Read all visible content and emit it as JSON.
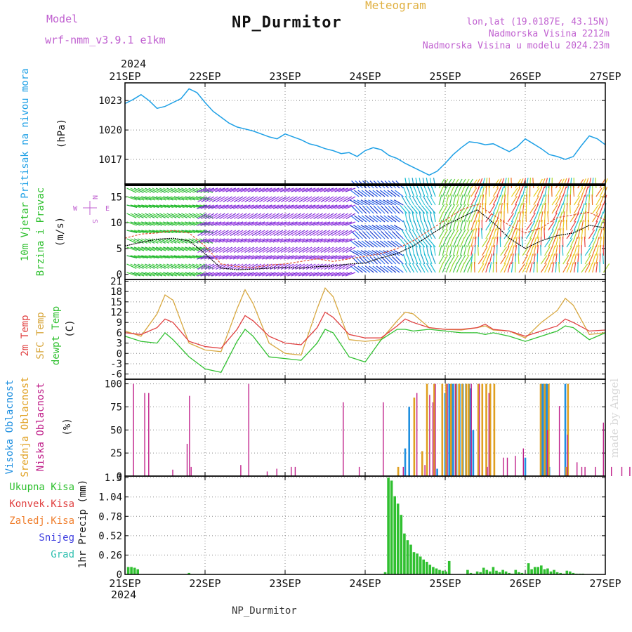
{
  "header": {
    "title": "NP_Durmitor",
    "meteogram_label": "Meteogram",
    "model_label": "Model",
    "model_name": "wrf-nmm_v3.9.1 e1km",
    "lonlat": "lon,lat (19.0187E, 43.15N)",
    "altitude": "Nadmorska Visina 2212m",
    "altitude_model": "Nadmorska Visina u modelu 2024.23m",
    "year": "2024",
    "bottom_label": "NP_Durmitor",
    "watermark": "made by Angel"
  },
  "colors": {
    "pressure": "#1ea0e6",
    "wind_speed": "#000000",
    "gust": "#e05030",
    "temp_2m": "#e04040",
    "temp_sfc": "#d8a840",
    "dewpoint": "#30c030",
    "cloud_high": "#2090e0",
    "cloud_mid": "#e0a020",
    "cloud_low": "#c0208a",
    "precip_total": "#30c030",
    "precip_conv": "#e04040",
    "precip_frozen": "#f08030",
    "snow": "#4040e0",
    "hail": "#30c0b0",
    "compass": "#c060d0"
  },
  "chart_data": [
    {
      "type": "line",
      "panel": "pressure",
      "ylabel_left": "Pritisak na nivou mora",
      "ylabel_unit": "(hPa)",
      "x_tick_labels": [
        "21SEP",
        "22SEP",
        "23SEP",
        "24SEP",
        "25SEP",
        "26SEP",
        "27SEP"
      ],
      "yticks": [
        1017,
        1020,
        1023
      ],
      "ylim": [
        1014.5,
        1024.8
      ],
      "grid": true,
      "x": [
        0,
        0.1,
        0.2,
        0.3,
        0.4,
        0.5,
        0.6,
        0.7,
        0.8,
        0.9,
        1.0,
        1.1,
        1.2,
        1.3,
        1.4,
        1.5,
        1.6,
        1.7,
        1.8,
        1.9,
        2.0,
        2.1,
        2.2,
        2.3,
        2.4,
        2.5,
        2.6,
        2.7,
        2.8,
        2.9,
        3.0,
        3.1,
        3.2,
        3.3,
        3.4,
        3.5,
        3.6,
        3.7,
        3.8,
        3.9,
        4.0,
        4.1,
        4.2,
        4.3,
        4.4,
        4.5,
        4.6,
        4.7,
        4.8,
        4.9,
        5.0,
        5.1,
        5.2,
        5.3,
        5.4,
        5.5,
        5.6,
        5.7,
        5.8,
        5.9,
        6.0
      ],
      "series": [
        {
          "values": [
            1022.7,
            1023.1,
            1023.6,
            1023.0,
            1022.2,
            1022.4,
            1022.8,
            1023.2,
            1024.2,
            1023.8,
            1022.8,
            1021.9,
            1021.3,
            1020.7,
            1020.3,
            1020.1,
            1019.9,
            1019.6,
            1019.3,
            1019.1,
            1019.6,
            1019.3,
            1019.0,
            1018.6,
            1018.4,
            1018.1,
            1017.9,
            1017.6,
            1017.7,
            1017.3,
            1017.9,
            1018.2,
            1018.0,
            1017.4,
            1017.1,
            1016.6,
            1016.2,
            1015.8,
            1015.4,
            1015.8,
            1016.6,
            1017.5,
            1018.2,
            1018.8,
            1018.7,
            1018.5,
            1018.6,
            1018.2,
            1017.8,
            1018.3,
            1019.1,
            1018.6,
            1018.1,
            1017.5,
            1017.3,
            1017.0,
            1017.3,
            1018.4,
            1019.4,
            1019.1,
            1018.5
          ]
        }
      ]
    },
    {
      "type": "line",
      "panel": "wind",
      "ylabel_left": "10m Vjetar",
      "ylabel_left2": "Brzina i Pravac",
      "ylabel_unit": "(m/s)",
      "compass": {
        "n": "N",
        "s": "S",
        "e": "E",
        "w": "W"
      },
      "yticks": [
        0,
        5,
        10,
        15
      ],
      "ylim": [
        -1,
        17.5
      ],
      "grid": false,
      "x": [
        0,
        0.2,
        0.4,
        0.6,
        0.8,
        1.0,
        1.2,
        1.4,
        1.6,
        1.8,
        2.0,
        2.2,
        2.4,
        2.6,
        2.8,
        3.0,
        3.2,
        3.4,
        3.6,
        3.8,
        4.0,
        4.2,
        4.4,
        4.6,
        4.8,
        5.0,
        5.2,
        5.4,
        5.6,
        5.8,
        6.0
      ],
      "series": [
        {
          "name": "speed",
          "values": [
            5.5,
            6.2,
            6.8,
            7.0,
            6.5,
            4.0,
            1.2,
            0.9,
            1.0,
            1.2,
            1.3,
            1.2,
            1.5,
            1.6,
            2.0,
            2.2,
            3.2,
            4.0,
            5.5,
            7.5,
            9.5,
            11.0,
            12.5,
            10.0,
            7.0,
            5.0,
            6.5,
            7.5,
            8.0,
            9.5,
            9.0
          ]
        },
        {
          "name": "gust",
          "values": [
            7.0,
            7.8,
            8.0,
            8.5,
            8.0,
            5.5,
            2.0,
            1.5,
            1.3,
            1.8,
            2.0,
            2.5,
            3.0,
            2.5,
            3.0,
            3.5,
            4.0,
            5.0,
            6.5,
            8.5,
            10.5,
            12.5,
            13.5,
            11.5,
            9.5,
            8.0,
            9.0,
            11.0,
            11.5,
            12.0,
            10.5
          ]
        }
      ],
      "wind_barb_direction_band_colors": [
        {
          "x_from": 0.0,
          "x_to": 1.0,
          "color": "green"
        },
        {
          "x_from": 1.0,
          "x_to": 2.9,
          "color": "purple"
        },
        {
          "x_from": 2.9,
          "x_to": 3.5,
          "color": "blue"
        },
        {
          "x_from": 3.5,
          "x_to": 3.9,
          "color": "cyan"
        },
        {
          "x_from": 3.9,
          "x_to": 4.3,
          "color": "light green"
        },
        {
          "x_from": 4.3,
          "x_to": 6.0,
          "color": "yellow/orange/red/cyan mix"
        }
      ]
    },
    {
      "type": "line",
      "panel": "temperature",
      "ylabel_left": "2m Temp",
      "ylabel_left2": "SFC Temp",
      "ylabel_left3": "dewpt Temp",
      "ylabel_unit": "(C)",
      "yticks": [
        -6,
        -3,
        0,
        3,
        6,
        9,
        12,
        15,
        18,
        21
      ],
      "ylim": [
        -7.5,
        21.5
      ],
      "grid": true,
      "x": [
        0,
        0.2,
        0.4,
        0.5,
        0.6,
        0.8,
        1.0,
        1.2,
        1.4,
        1.5,
        1.6,
        1.8,
        2.0,
        2.2,
        2.4,
        2.5,
        2.6,
        2.8,
        3.0,
        3.2,
        3.4,
        3.5,
        3.6,
        3.8,
        4.0,
        4.2,
        4.4,
        4.5,
        4.6,
        4.8,
        5.0,
        5.2,
        5.4,
        5.5,
        5.6,
        5.8,
        6.0
      ],
      "series": [
        {
          "name": "2m",
          "values": [
            6.0,
            5.5,
            7.5,
            10.0,
            9.0,
            3.5,
            2.0,
            1.5,
            7.0,
            11.0,
            9.5,
            5.0,
            3.0,
            2.5,
            7.5,
            12.0,
            10.5,
            5.5,
            4.5,
            4.5,
            8.0,
            10.0,
            9.0,
            7.5,
            7.0,
            7.0,
            7.5,
            8.5,
            7.0,
            6.5,
            5.0,
            6.5,
            8.0,
            10.0,
            9.0,
            6.5,
            6.8
          ]
        },
        {
          "name": "SFC",
          "values": [
            6.5,
            5.0,
            11.5,
            17.0,
            15.5,
            3.0,
            1.0,
            0.5,
            13.0,
            18.5,
            14.5,
            3.0,
            0.0,
            -0.5,
            13.0,
            19.0,
            16.5,
            4.0,
            3.5,
            4.0,
            9.5,
            12.0,
            11.5,
            7.5,
            7.0,
            6.8,
            7.5,
            8.0,
            6.8,
            6.5,
            4.5,
            9.0,
            12.5,
            16.0,
            14.0,
            5.5,
            6.0
          ]
        },
        {
          "name": "dewpt",
          "values": [
            5.0,
            3.5,
            3.0,
            6.0,
            4.0,
            -1.0,
            -4.5,
            -5.5,
            3.5,
            7.0,
            5.0,
            -1.0,
            -1.5,
            -2.0,
            3.0,
            7.0,
            6.0,
            -1.0,
            -2.5,
            4.0,
            7.0,
            7.0,
            6.5,
            7.0,
            6.5,
            6.0,
            6.0,
            5.5,
            6.0,
            5.0,
            3.5,
            5.0,
            6.5,
            8.0,
            7.5,
            4.0,
            6.0
          ]
        }
      ]
    },
    {
      "type": "bar",
      "panel": "clouds",
      "ylabel_left": "Visoka Oblacnost",
      "ylabel_left2": "Srednja Oblacnost",
      "ylabel_left3": "Niska Oblacnost",
      "ylabel_unit": "(%)",
      "yticks": [
        0,
        25,
        50,
        75,
        100
      ],
      "ylim": [
        0,
        105
      ],
      "grid": true,
      "series": [
        {
          "name": "Visoka",
          "x": [
            3.5,
            3.55,
            3.9,
            4.0,
            4.02,
            4.05,
            4.08,
            4.1,
            4.14,
            4.18,
            4.22,
            4.26,
            4.3,
            4.32,
            4.35,
            5.0,
            5.2,
            5.22,
            5.25,
            5.27,
            5.3,
            5.5
          ],
          "values": [
            30,
            75,
            8,
            90,
            100,
            100,
            100,
            100,
            100,
            100,
            100,
            100,
            100,
            95,
            50,
            20,
            100,
            100,
            100,
            100,
            10,
            100
          ]
        },
        {
          "name": "Srednja",
          "x": [
            3.4,
            3.6,
            3.7,
            3.76,
            3.85,
            3.95,
            4.0,
            4.06,
            4.12,
            4.16,
            4.2,
            4.25,
            4.28,
            4.4,
            4.45,
            4.5,
            4.55,
            4.6,
            5.18,
            5.23,
            5.28,
            5.5,
            5.52
          ],
          "values": [
            10,
            85,
            27,
            100,
            100,
            100,
            100,
            100,
            100,
            100,
            100,
            100,
            100,
            100,
            100,
            100,
            100,
            100,
            100,
            100,
            100,
            10,
            100
          ]
        },
        {
          "name": "Niska",
          "x": [
            0.08,
            0.22,
            0.27,
            0.57,
            0.75,
            0.78,
            0.8,
            1.42,
            1.52,
            1.75,
            1.87,
            2.05,
            2.1,
            2.7,
            2.9,
            3.2,
            3.45,
            3.62,
            3.72,
            3.78,
            3.82,
            3.85,
            4.0,
            4.1,
            4.3,
            4.4,
            4.5,
            4.52,
            4.7,
            4.75,
            4.85,
            4.95,
            5.25,
            5.4,
            5.5,
            5.62,
            5.68,
            5.72,
            5.85,
            5.95,
            6.05,
            6.18,
            6.28,
            6.38,
            6.5,
            6.57,
            6.68
          ],
          "values": [
            100,
            90,
            90,
            7,
            35,
            87,
            10,
            12,
            100,
            5,
            8,
            10,
            10,
            80,
            10,
            80,
            10,
            90,
            12,
            88,
            80,
            100,
            100,
            100,
            100,
            100,
            10,
            90,
            20,
            20,
            22,
            30,
            50,
            76,
            45,
            15,
            10,
            10,
            10,
            58,
            10,
            10,
            10,
            75,
            96,
            88,
            60
          ]
        }
      ]
    },
    {
      "type": "bar",
      "panel": "precipitation",
      "legend": [
        "Ukupna Kisa",
        "Konvek.Kisa",
        "Zaledj.Kisa",
        "Snijeg",
        "Grad"
      ],
      "ylabel_unit": "1hr Precip (mm)",
      "yticks": [
        0,
        0.26,
        0.52,
        0.78,
        1.04,
        1.3
      ],
      "ylim": [
        0,
        1.32
      ],
      "grid": true,
      "x_tick_labels": [
        "21SEP",
        "22SEP",
        "23SEP",
        "24SEP",
        "25SEP",
        "26SEP",
        "27SEP"
      ],
      "series": [
        {
          "name": "Ukupna Kisa",
          "x": [
            0.04,
            0.08,
            0.12,
            0.16,
            0.8,
            3.25,
            3.29,
            3.33,
            3.37,
            3.41,
            3.45,
            3.49,
            3.53,
            3.57,
            3.61,
            3.65,
            3.69,
            3.73,
            3.77,
            3.81,
            3.85,
            3.89,
            3.93,
            3.97,
            4.01,
            4.05,
            4.28,
            4.32,
            4.36,
            4.4,
            4.44,
            4.48,
            4.52,
            4.56,
            4.6,
            4.64,
            4.68,
            4.72,
            4.76,
            4.8,
            4.84,
            4.88,
            4.92,
            4.96,
            5.0,
            5.04,
            5.08,
            5.12,
            5.16,
            5.2,
            5.24,
            5.28,
            5.32,
            5.36,
            5.4,
            5.44,
            5.48,
            5.52,
            5.56,
            5.6,
            5.64,
            5.68,
            5.72
          ],
          "values": [
            0.1,
            0.1,
            0.09,
            0.07,
            0.02,
            0.03,
            1.3,
            1.26,
            1.05,
            0.95,
            0.8,
            0.55,
            0.46,
            0.4,
            0.3,
            0.28,
            0.24,
            0.2,
            0.17,
            0.13,
            0.1,
            0.08,
            0.06,
            0.05,
            0.04,
            0.18,
            0.06,
            0.02,
            0.01,
            0.04,
            0.03,
            0.09,
            0.06,
            0.04,
            0.1,
            0.05,
            0.03,
            0.06,
            0.04,
            0.02,
            0.01,
            0.06,
            0.03,
            0.02,
            0.01,
            0.15,
            0.07,
            0.1,
            0.1,
            0.12,
            0.07,
            0.08,
            0.04,
            0.06,
            0.03,
            0.02,
            0.01,
            0.05,
            0.04,
            0.02,
            0.01,
            0.01,
            0.01
          ]
        }
      ]
    }
  ]
}
